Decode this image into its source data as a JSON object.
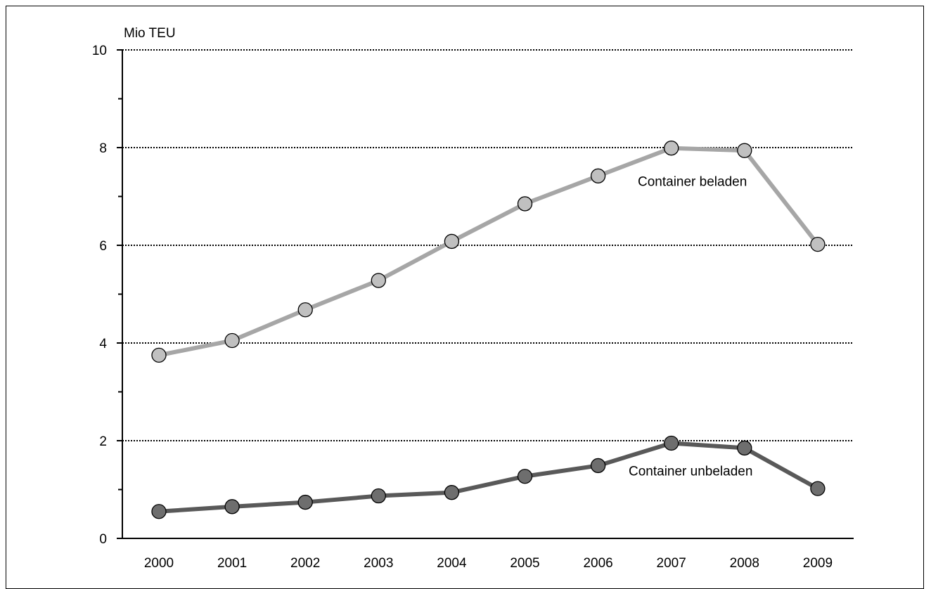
{
  "chart_data": {
    "type": "line",
    "ylabel": "Mio TEU",
    "ylim": [
      0,
      10
    ],
    "yticks": [
      0,
      2,
      4,
      6,
      8,
      10
    ],
    "grid": "horizontal-dotted",
    "categories": [
      "2000",
      "2001",
      "2002",
      "2003",
      "2004",
      "2005",
      "2006",
      "2007",
      "2008",
      "2009"
    ],
    "series": [
      {
        "name": "Container beladen",
        "values": [
          3.75,
          4.05,
          4.68,
          5.28,
          6.08,
          6.85,
          7.42,
          7.99,
          7.94,
          6.02
        ],
        "line_color": "#a6a6a6",
        "marker_color": "#c0c0c0"
      },
      {
        "name": "Container unbeladen",
        "values": [
          0.55,
          0.65,
          0.74,
          0.87,
          0.94,
          1.27,
          1.49,
          1.95,
          1.85,
          1.02
        ],
        "line_color": "#595959",
        "marker_color": "#6e6e6e"
      }
    ]
  }
}
